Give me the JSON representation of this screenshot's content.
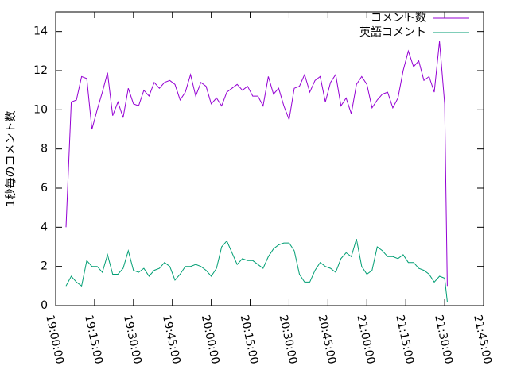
{
  "chart_data": {
    "type": "line",
    "y_label": "1秒毎のコメント数",
    "x": [
      "19:04:00",
      "19:06:00",
      "19:08:00",
      "19:10:00",
      "19:12:00",
      "19:14:00",
      "19:16:00",
      "19:18:00",
      "19:20:00",
      "19:22:00",
      "19:24:00",
      "19:26:00",
      "19:28:00",
      "19:30:00",
      "19:32:00",
      "19:34:00",
      "19:36:00",
      "19:38:00",
      "19:40:00",
      "19:42:00",
      "19:44:00",
      "19:46:00",
      "19:48:00",
      "19:50:00",
      "19:52:00",
      "19:54:00",
      "19:56:00",
      "19:58:00",
      "20:00:00",
      "20:02:00",
      "20:04:00",
      "20:06:00",
      "20:08:00",
      "20:10:00",
      "20:12:00",
      "20:14:00",
      "20:16:00",
      "20:18:00",
      "20:20:00",
      "20:22:00",
      "20:24:00",
      "20:26:00",
      "20:28:00",
      "20:30:00",
      "20:32:00",
      "20:34:00",
      "20:36:00",
      "20:38:00",
      "20:40:00",
      "20:42:00",
      "20:44:00",
      "20:46:00",
      "20:48:00",
      "20:50:00",
      "20:52:00",
      "20:54:00",
      "20:56:00",
      "20:58:00",
      "21:00:00",
      "21:02:00",
      "21:04:00",
      "21:06:00",
      "21:08:00",
      "21:10:00",
      "21:12:00",
      "21:14:00",
      "21:16:00",
      "21:18:00",
      "21:20:00",
      "21:22:00",
      "21:24:00",
      "21:26:00",
      "21:28:00",
      "21:30:00",
      "21:31:00"
    ],
    "series": [
      {
        "name": "コメント数",
        "color": "#9400d3",
        "values": [
          4.0,
          10.4,
          10.5,
          11.7,
          11.6,
          9.0,
          10.0,
          10.9,
          11.9,
          9.7,
          10.4,
          9.6,
          11.1,
          10.3,
          10.2,
          11.0,
          10.7,
          11.4,
          11.1,
          11.4,
          11.5,
          11.3,
          10.5,
          10.9,
          11.8,
          10.7,
          11.4,
          11.2,
          10.3,
          10.6,
          10.2,
          10.9,
          11.1,
          11.3,
          11.0,
          11.2,
          10.7,
          10.7,
          10.2,
          11.7,
          10.8,
          11.1,
          10.2,
          9.5,
          11.1,
          11.2,
          11.8,
          10.9,
          11.5,
          11.7,
          10.4,
          11.4,
          11.8,
          10.2,
          10.6,
          9.8,
          11.3,
          11.7,
          11.3,
          10.1,
          10.5,
          10.8,
          10.9,
          10.1,
          10.6,
          12.0,
          13.0,
          12.2,
          12.5,
          11.5,
          11.7,
          10.9,
          13.5,
          10.3,
          1.0
        ]
      },
      {
        "name": "英語コメント",
        "color": "#009e73",
        "values": [
          1.0,
          1.5,
          1.2,
          1.0,
          2.3,
          2.0,
          2.0,
          1.7,
          2.6,
          1.6,
          1.6,
          1.9,
          2.8,
          1.8,
          1.7,
          1.9,
          1.5,
          1.8,
          1.9,
          2.2,
          2.0,
          1.3,
          1.6,
          2.0,
          2.0,
          2.1,
          2.0,
          1.8,
          1.5,
          1.9,
          3.0,
          3.3,
          2.7,
          2.1,
          2.4,
          2.3,
          2.3,
          2.1,
          1.9,
          2.5,
          2.9,
          3.1,
          3.2,
          3.2,
          2.8,
          1.6,
          1.2,
          1.2,
          1.8,
          2.2,
          2.0,
          1.9,
          1.7,
          2.4,
          2.7,
          2.5,
          3.4,
          2.0,
          1.6,
          1.8,
          3.0,
          2.8,
          2.5,
          2.5,
          2.4,
          2.6,
          2.2,
          2.2,
          1.9,
          1.8,
          1.6,
          1.2,
          1.5,
          1.4,
          0.2
        ]
      }
    ],
    "xlim": [
      "19:00:00",
      "21:45:00"
    ],
    "xticks": [
      "19:00:00",
      "19:15:00",
      "19:30:00",
      "19:45:00",
      "20:00:00",
      "20:15:00",
      "20:30:00",
      "20:45:00",
      "21:00:00",
      "21:15:00",
      "21:30:00",
      "21:45:00"
    ],
    "ylim": [
      0,
      15
    ],
    "yticks": [
      0,
      2,
      4,
      6,
      8,
      10,
      12,
      14
    ],
    "legend": "top-right"
  }
}
